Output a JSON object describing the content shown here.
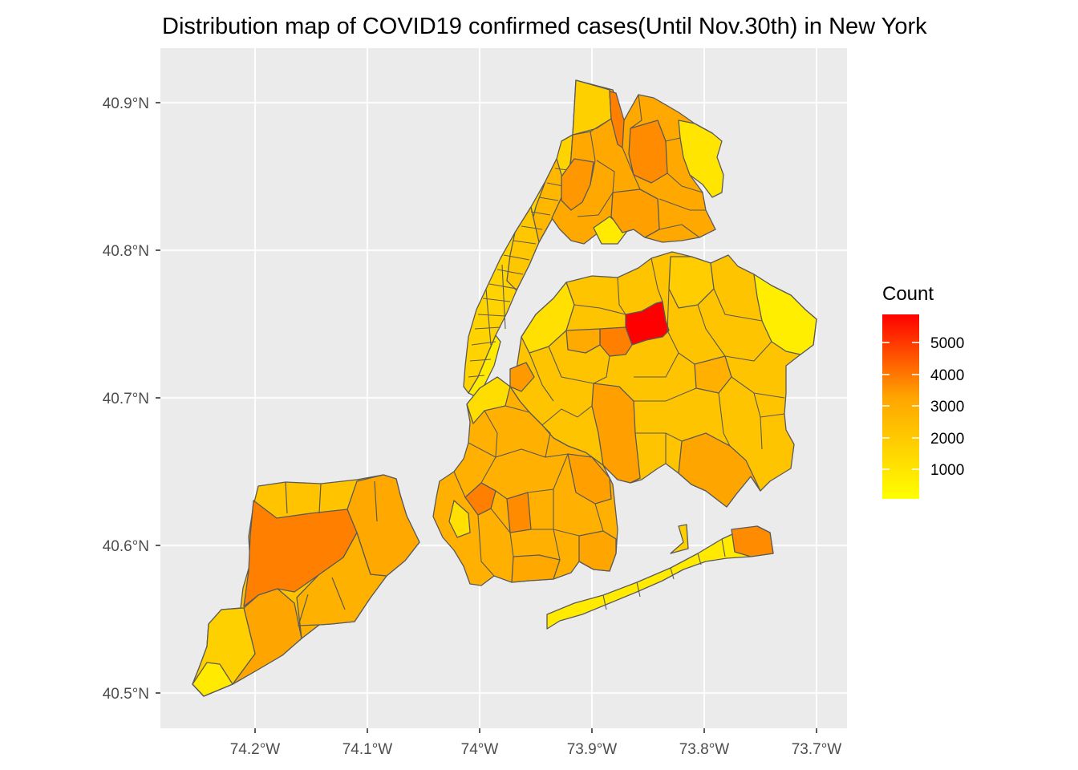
{
  "title": "Distribution map of COVID19 confirmed cases(Until Nov.30th) in New York",
  "map": {
    "panel_background": "#ebebeb",
    "grid_color": "#ffffff",
    "border_color": "#5a5a5a",
    "x_axis_ticks": [
      "74.2°W",
      "74.1°W",
      "74°W",
      "73.9°W",
      "73.8°W",
      "73.7°W"
    ],
    "y_axis_ticks": [
      "40.9°N",
      "40.8°N",
      "40.7°N",
      "40.6°N",
      "40.5°N"
    ],
    "lon_range": [
      -74.28,
      -73.68
    ],
    "lat_range": [
      40.48,
      40.92
    ]
  },
  "legend": {
    "title": "Count",
    "labels": [
      "5000",
      "4000",
      "3000",
      "2000",
      "1000"
    ],
    "color_low": "#ffff00",
    "color_mid": "#ffa500",
    "color_high": "#ff0000",
    "value_min": 50,
    "value_max": 5900
  },
  "regions": {
    "staten_island": {
      "level_count": 2500
    },
    "manhattan": {
      "level_count": 1200
    },
    "bronx": {
      "level_count": 2600
    },
    "queens": {
      "level_count": 2300
    },
    "brooklyn": {
      "level_count": 2400
    },
    "rockaways": {
      "level_count": 800
    },
    "highest_zip": {
      "level_count": 5900
    }
  }
}
